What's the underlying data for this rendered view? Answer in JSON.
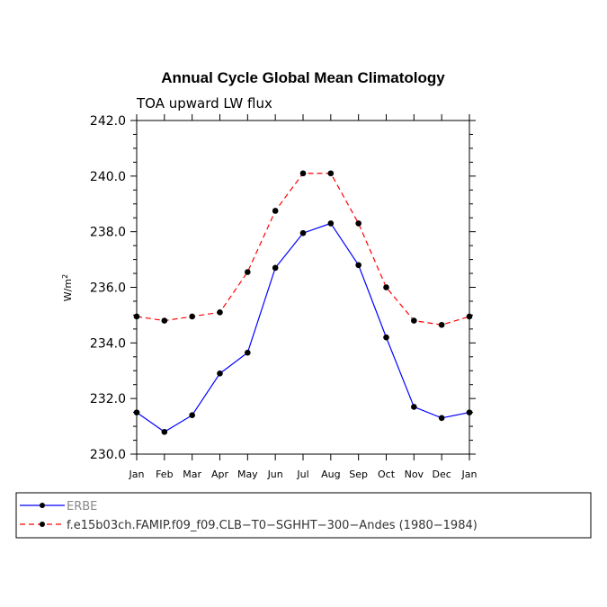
{
  "chart_data": {
    "type": "line",
    "title": "Annual Cycle Global Mean Climatology",
    "subtitle": "TOA upward LW flux",
    "ylabel_base": "W/m",
    "ylabel_sup": "2",
    "xlabel": "",
    "categories": [
      "Jan",
      "Feb",
      "Mar",
      "Apr",
      "May",
      "Jun",
      "Jul",
      "Aug",
      "Sep",
      "Oct",
      "Nov",
      "Dec",
      "Jan"
    ],
    "ylim": [
      230.0,
      242.0
    ],
    "yticks": [
      "230.0",
      "232.0",
      "234.0",
      "236.0",
      "238.0",
      "240.0",
      "242.0"
    ],
    "grid": false,
    "series": [
      {
        "name": "ERBE",
        "color": "#0000ff",
        "dash": "solid",
        "values": [
          231.5,
          230.8,
          231.4,
          232.9,
          233.65,
          236.7,
          237.95,
          238.3,
          236.8,
          234.2,
          231.7,
          231.3,
          231.5
        ]
      },
      {
        "name": "f.e15b03ch.FAMIP.f09_f09.CLB−T0−SGHHT−300−Andes (1980−1984)",
        "color": "#ff0000",
        "dash": "dashed",
        "values": [
          234.95,
          234.8,
          234.95,
          235.1,
          236.55,
          238.75,
          240.1,
          240.1,
          238.3,
          236.0,
          234.8,
          234.65,
          234.95
        ]
      }
    ],
    "legend_position": "bottom"
  }
}
